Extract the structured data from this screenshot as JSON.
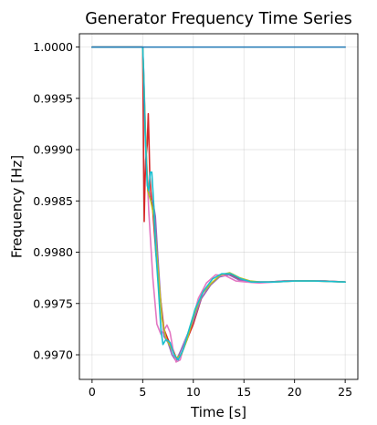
{
  "chart_data": {
    "type": "line",
    "title": "Generator Frequency Time Series",
    "xlabel": "Time [s]",
    "ylabel": "Frequency [Hz]",
    "xlim": [
      -1.25,
      26.25
    ],
    "ylim": [
      0.99676,
      1.00013
    ],
    "xticks": [
      0,
      5,
      10,
      15,
      20,
      25
    ],
    "xtick_labels": [
      "0",
      "5",
      "10",
      "15",
      "20",
      "25"
    ],
    "yticks": [
      0.997,
      0.9975,
      0.998,
      0.9985,
      0.999,
      0.9995,
      1.0
    ],
    "ytick_labels": [
      "0.9970",
      "0.9975",
      "0.9980",
      "0.9985",
      "0.9990",
      "0.9995",
      "1.0000"
    ],
    "grid": true,
    "legend": "none",
    "series": [
      {
        "color": "#1f77b4",
        "x": [
          0,
          25
        ],
        "y": [
          1.0,
          1.0
        ]
      },
      {
        "color": "#d62728",
        "x": [
          0,
          5.0,
          5.08,
          5.15,
          5.22,
          5.3,
          5.45,
          5.55,
          5.62,
          5.7,
          5.8,
          6.0,
          6.3,
          6.7,
          7.1,
          7.5,
          8.0,
          8.3,
          8.8,
          9.3,
          10.0,
          10.8,
          11.7,
          12.6,
          13.5,
          14.5,
          15.5,
          16.5,
          17.5,
          19,
          21,
          23,
          25
        ],
        "y": [
          1.0,
          1.0,
          0.99905,
          0.9983,
          0.99865,
          0.9989,
          0.99905,
          0.99935,
          0.9991,
          0.99875,
          0.9986,
          0.9984,
          0.998,
          0.9976,
          0.99725,
          0.99715,
          0.99705,
          0.99697,
          0.997,
          0.99713,
          0.9973,
          0.99755,
          0.99768,
          0.99777,
          0.99779,
          0.99774,
          0.99771,
          0.99771,
          0.99771,
          0.99772,
          0.99772,
          0.99772,
          0.99771
        ]
      },
      {
        "color": "#9467bd",
        "x": [
          0,
          5.0,
          5.05,
          5.2,
          5.4,
          5.6,
          5.8,
          6.0,
          6.25,
          6.5,
          6.8,
          7.1,
          7.5,
          7.9,
          8.3,
          8.8,
          9.3,
          10.0,
          10.8,
          11.7,
          12.6,
          13.5,
          14.5,
          15.5,
          16.5,
          17.5,
          19,
          21,
          23,
          25
        ],
        "y": [
          1.0,
          1.0,
          0.99985,
          0.9993,
          0.9988,
          0.9986,
          0.9985,
          0.9985,
          0.99835,
          0.99795,
          0.9975,
          0.99718,
          0.99712,
          0.997,
          0.99694,
          0.99705,
          0.99717,
          0.99733,
          0.99755,
          0.99768,
          0.99776,
          0.99778,
          0.99773,
          0.99771,
          0.99771,
          0.99771,
          0.99772,
          0.99772,
          0.99772,
          0.99771
        ]
      },
      {
        "color": "#e377c2",
        "x": [
          0,
          5.0,
          5.1,
          5.3,
          5.6,
          6.0,
          6.4,
          6.8,
          7.1,
          7.4,
          7.7,
          8.0,
          8.3,
          8.7,
          9.2,
          9.8,
          10.5,
          11.3,
          12.2,
          13.2,
          14.2,
          15.2,
          16.5,
          18,
          20,
          22,
          25
        ],
        "y": [
          1.0,
          1.0,
          0.99975,
          0.9991,
          0.9984,
          0.99775,
          0.9973,
          0.9972,
          0.99724,
          0.99729,
          0.99722,
          0.99705,
          0.99693,
          0.99695,
          0.99713,
          0.9973,
          0.99755,
          0.9977,
          0.99778,
          0.99777,
          0.99772,
          0.99771,
          0.9977,
          0.99771,
          0.99772,
          0.99772,
          0.99771
        ]
      },
      {
        "color": "#bcbd22",
        "x": [
          0,
          5.0,
          5.1,
          5.3,
          5.5,
          5.8,
          6.1,
          6.5,
          6.9,
          7.3,
          7.8,
          8.3,
          8.8,
          9.4,
          10.1,
          10.9,
          11.8,
          12.7,
          13.6,
          14.6,
          15.6,
          16.6,
          18,
          20,
          22,
          25
        ],
        "y": [
          1.0,
          1.0,
          0.9997,
          0.9991,
          0.9986,
          0.9985,
          0.99835,
          0.99785,
          0.99735,
          0.99716,
          0.99707,
          0.99697,
          0.997,
          0.99715,
          0.9974,
          0.9976,
          0.9977,
          0.99778,
          0.9978,
          0.99775,
          0.99772,
          0.99771,
          0.99771,
          0.99772,
          0.99772,
          0.99771
        ]
      },
      {
        "color": "#17becf",
        "x": [
          0,
          5.0,
          5.1,
          5.25,
          5.45,
          5.6,
          5.75,
          5.9,
          6.1,
          6.3,
          6.55,
          6.8,
          7.0,
          7.3,
          7.7,
          8.1,
          8.5,
          9.0,
          9.5,
          10.2,
          11.0,
          11.9,
          12.8,
          13.7,
          14.7,
          15.7,
          16.7,
          18,
          20,
          22,
          25
        ],
        "y": [
          1.0,
          1.0,
          0.99975,
          0.99915,
          0.99865,
          0.9986,
          0.99878,
          0.99878,
          0.99845,
          0.998,
          0.99765,
          0.99725,
          0.9971,
          0.99715,
          0.99712,
          0.997,
          0.99695,
          0.99705,
          0.99722,
          0.99745,
          0.99762,
          0.99774,
          0.99779,
          0.99779,
          0.99774,
          0.99771,
          0.99771,
          0.99771,
          0.99772,
          0.99772,
          0.99771
        ]
      }
    ]
  }
}
